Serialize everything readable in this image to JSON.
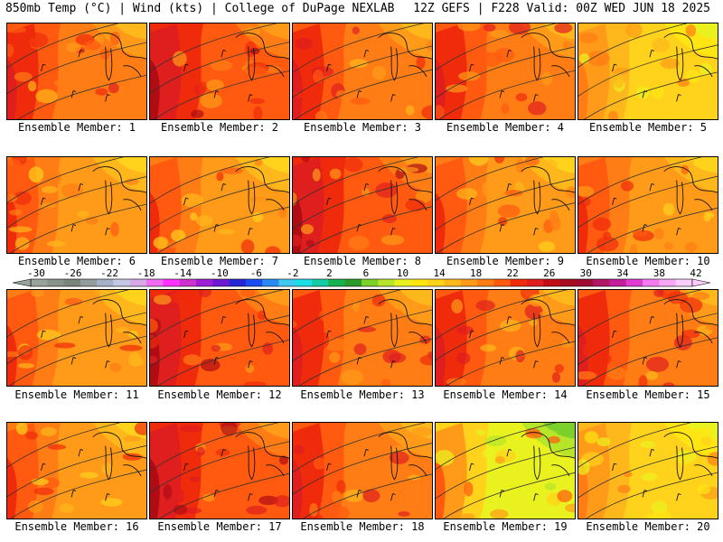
{
  "header": {
    "left": "850mb Temp (°C) | Wind (kts) | College of DuPage NEXLAB",
    "right": "12Z GEFS | F228 Valid: 00Z WED JUN 18 2025"
  },
  "colorbar": {
    "labels": [
      "-30",
      "-26",
      "-22",
      "-18",
      "-14",
      "-10",
      "-6",
      "-2",
      "2",
      "6",
      "10",
      "14",
      "18",
      "22",
      "26",
      "30",
      "34",
      "38",
      "42"
    ],
    "colors": [
      "#9aa39a",
      "#8a938a",
      "#7a847a",
      "#949c9c",
      "#a6b0c6",
      "#c4c8e6",
      "#d6a8e6",
      "#ef6cf2",
      "#ff33ff",
      "#cc33cc",
      "#9d1ed6",
      "#6c19d2",
      "#2626d6",
      "#1a4cf0",
      "#2a8af2",
      "#40c8f0",
      "#1de0e6",
      "#16cca4",
      "#17b24f",
      "#2b9a2a",
      "#7bd12a",
      "#b6e52a",
      "#e9f21f",
      "#ffe512",
      "#ffd21b",
      "#ffb81b",
      "#ff9b18",
      "#ff7d14",
      "#ff5a0f",
      "#ef2b0c",
      "#df1e1e",
      "#bf0f14",
      "#a80c20",
      "#9e0b35",
      "#b01566",
      "#c51e9a",
      "#e03cd0",
      "#f27cf0",
      "#f7a8f5",
      "#fbcdfb"
    ]
  },
  "panels": [
    {
      "label": "Ensemble Member: 1",
      "palette": "hot"
    },
    {
      "label": "Ensemble Member: 2",
      "palette": "veryhot"
    },
    {
      "label": "Ensemble Member: 3",
      "palette": "hot"
    },
    {
      "label": "Ensemble Member: 4",
      "palette": "hot"
    },
    {
      "label": "Ensemble Member: 5",
      "palette": "mild"
    },
    {
      "label": "Ensemble Member: 6",
      "palette": "warm"
    },
    {
      "label": "Ensemble Member: 7",
      "palette": "warm"
    },
    {
      "label": "Ensemble Member: 8",
      "palette": "veryhot"
    },
    {
      "label": "Ensemble Member: 9",
      "palette": "warm"
    },
    {
      "label": "Ensemble Member: 10",
      "palette": "warm"
    },
    {
      "label": "Ensemble Member: 11",
      "palette": "warm"
    },
    {
      "label": "Ensemble Member: 12",
      "palette": "veryhot"
    },
    {
      "label": "Ensemble Member: 13",
      "palette": "hot"
    },
    {
      "label": "Ensemble Member: 14",
      "palette": "hot"
    },
    {
      "label": "Ensemble Member: 15",
      "palette": "hot"
    },
    {
      "label": "Ensemble Member: 16",
      "palette": "warm"
    },
    {
      "label": "Ensemble Member: 17",
      "palette": "veryhot"
    },
    {
      "label": "Ensemble Member: 18",
      "palette": "hot"
    },
    {
      "label": "Ensemble Member: 19",
      "palette": "cool"
    },
    {
      "label": "Ensemble Member: 20",
      "palette": "mild"
    }
  ]
}
